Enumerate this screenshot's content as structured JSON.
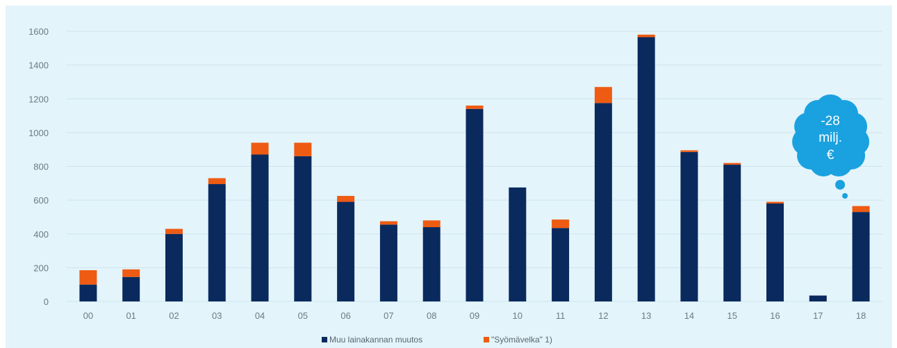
{
  "colors": {
    "background": "#e3f4fb",
    "grid": "#cfe3ec",
    "muu": "#0a2a5e",
    "syomavelka": "#ee5b12",
    "bubble": "#1aa1df"
  },
  "annotation": {
    "lines": [
      "-28",
      "milj.",
      "€"
    ],
    "category": "18"
  },
  "chart_data": {
    "type": "bar",
    "stacked": true,
    "title": "",
    "xlabel": "",
    "ylabel": "",
    "ylim": [
      0,
      1600
    ],
    "yticks": [
      0,
      200,
      400,
      600,
      800,
      1000,
      1200,
      1400,
      1600
    ],
    "grid": true,
    "legend_position": "bottom",
    "categories": [
      "00",
      "01",
      "02",
      "03",
      "04",
      "05",
      "06",
      "07",
      "08",
      "09",
      "10",
      "11",
      "12",
      "13",
      "14",
      "15",
      "16",
      "17",
      "18"
    ],
    "series": [
      {
        "name": "Muu lainakannan muutos",
        "color": "#0a2a5e",
        "values": [
          100,
          145,
          400,
          695,
          870,
          860,
          590,
          455,
          440,
          1140,
          675,
          435,
          1175,
          1565,
          885,
          810,
          580,
          35,
          530
        ]
      },
      {
        "name": "\"Syömävelka\" 1)",
        "color": "#ee5b12",
        "values": [
          85,
          45,
          30,
          35,
          70,
          80,
          35,
          20,
          40,
          20,
          0,
          50,
          95,
          15,
          10,
          10,
          10,
          0,
          35
        ]
      }
    ]
  }
}
